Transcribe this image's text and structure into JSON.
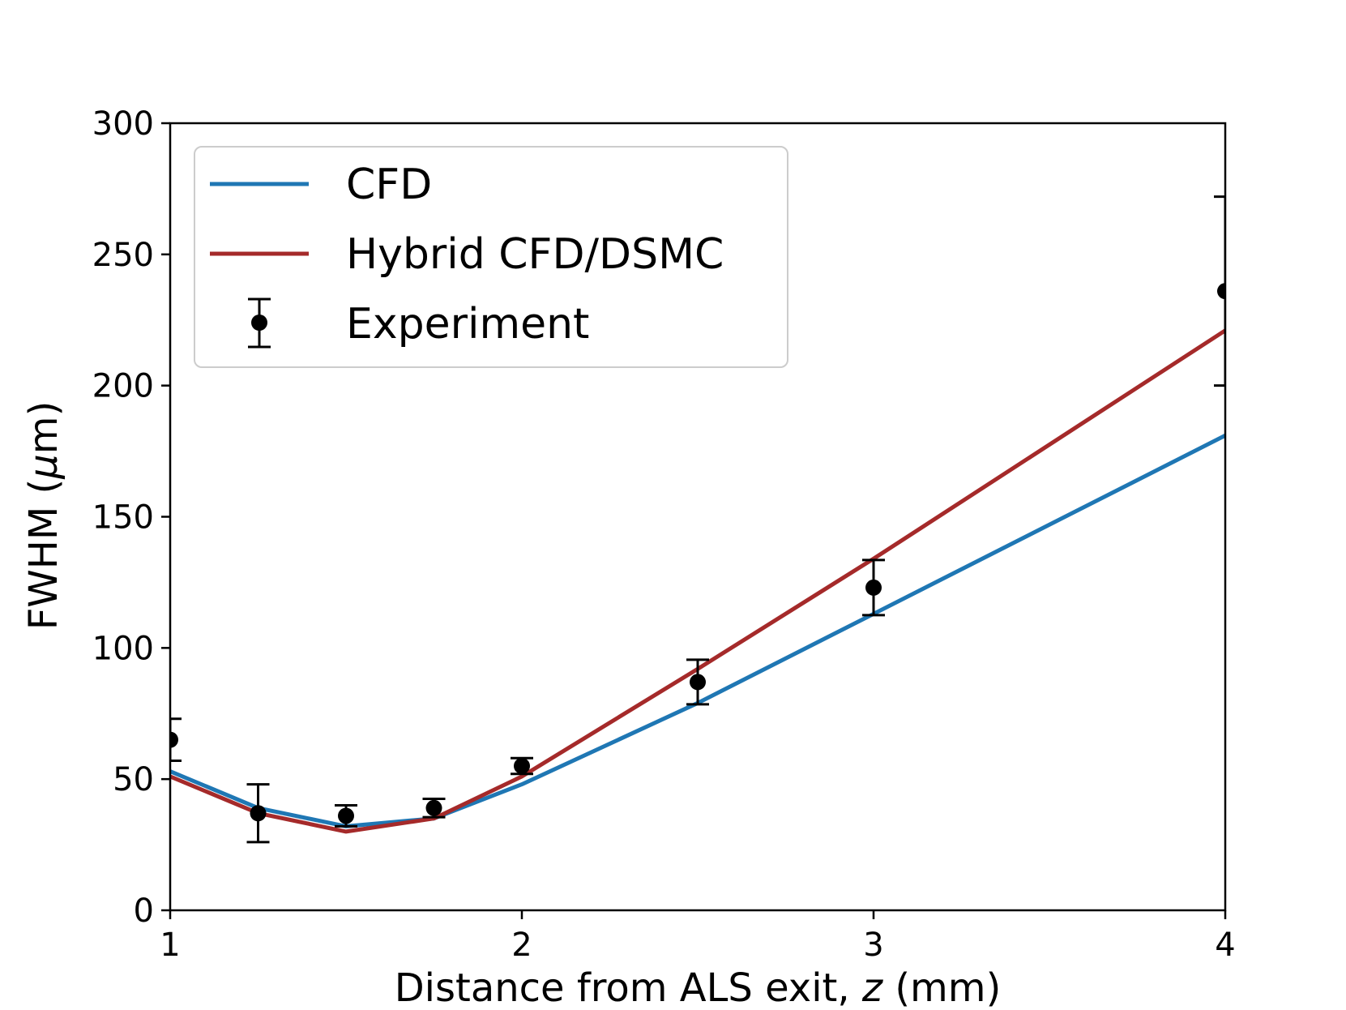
{
  "chart_data": {
    "type": "line",
    "title": "",
    "xlabel": "Distance from ALS exit, ",
    "xlabel_var": "z",
    "xlabel_unit": " (mm)",
    "ylabel": "FWHM (",
    "ylabel_greek": "μ",
    "ylabel_unit": "m)",
    "xlim": [
      1,
      4
    ],
    "ylim": [
      0,
      300
    ],
    "xticks": [
      1,
      2,
      3,
      4
    ],
    "xtick_labels": [
      "1",
      "2",
      "3",
      "4"
    ],
    "yticks": [
      0,
      50,
      100,
      150,
      200,
      250,
      300
    ],
    "ytick_labels": [
      "0",
      "50",
      "100",
      "150",
      "200",
      "250",
      "300"
    ],
    "grid": false,
    "legend_position": "upper-left",
    "series": [
      {
        "name": "CFD",
        "kind": "line",
        "color": "#1f77b4",
        "x": [
          1,
          1.25,
          1.5,
          1.75,
          2,
          2.5,
          3,
          4
        ],
        "y": [
          53,
          39,
          32,
          35,
          48,
          79,
          113,
          181
        ]
      },
      {
        "name": "Hybrid CFD/DSMC",
        "kind": "line",
        "color": "#a52a2a",
        "x": [
          1,
          1.25,
          1.5,
          1.75,
          2,
          2.5,
          3,
          4
        ],
        "y": [
          51,
          37,
          30,
          35,
          51,
          92,
          134,
          221
        ]
      },
      {
        "name": "Experiment",
        "kind": "errorbar",
        "color": "#000000",
        "x": [
          1,
          1.25,
          1.5,
          1.75,
          2,
          2.5,
          3,
          4
        ],
        "y": [
          65,
          37,
          36,
          39,
          55,
          87,
          123,
          236
        ],
        "err": [
          8,
          11,
          4,
          3.5,
          3,
          8.5,
          10.5,
          36
        ]
      }
    ]
  }
}
